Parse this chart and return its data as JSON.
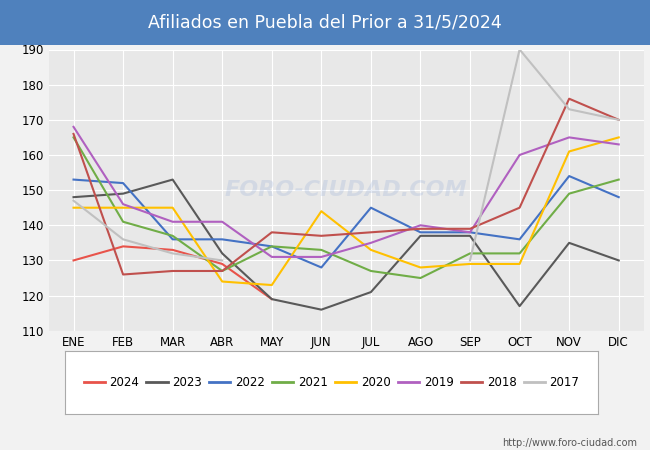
{
  "title": "Afiliados en Puebla del Prior a 31/5/2024",
  "title_bg_color": "#4f81bd",
  "title_text_color": "#ffffff",
  "ylim": [
    110,
    190
  ],
  "yticks": [
    110,
    120,
    130,
    140,
    150,
    160,
    170,
    180,
    190
  ],
  "months": [
    "ENE",
    "FEB",
    "MAR",
    "ABR",
    "MAY",
    "JUN",
    "JUL",
    "AGO",
    "SEP",
    "OCT",
    "NOV",
    "DIC"
  ],
  "url": "http://www.foro-ciudad.com",
  "series": {
    "2024": {
      "color": "#e8534a",
      "data": [
        130,
        134,
        133,
        129,
        119,
        null,
        null,
        null,
        null,
        null,
        null,
        null
      ]
    },
    "2023": {
      "color": "#595959",
      "data": [
        148,
        149,
        153,
        132,
        119,
        116,
        121,
        137,
        137,
        117,
        135,
        130
      ]
    },
    "2022": {
      "color": "#4472c4",
      "data": [
        153,
        152,
        136,
        136,
        134,
        128,
        145,
        138,
        138,
        136,
        154,
        148
      ]
    },
    "2021": {
      "color": "#70ad47",
      "data": [
        165,
        141,
        137,
        127,
        134,
        133,
        127,
        125,
        132,
        132,
        149,
        153
      ]
    },
    "2020": {
      "color": "#ffc000",
      "data": [
        145,
        145,
        145,
        124,
        123,
        144,
        133,
        128,
        129,
        129,
        161,
        165
      ]
    },
    "2019": {
      "color": "#b060c0",
      "data": [
        168,
        146,
        141,
        141,
        131,
        131,
        135,
        140,
        138,
        160,
        165,
        163
      ]
    },
    "2018": {
      "color": "#c0504d",
      "data": [
        166,
        126,
        127,
        127,
        138,
        137,
        138,
        139,
        139,
        145,
        176,
        170
      ]
    },
    "2017": {
      "color": "#c0c0c0",
      "data": [
        147,
        136,
        132,
        130,
        null,
        null,
        null,
        null,
        130,
        190,
        173,
        170
      ]
    }
  },
  "legend_years": [
    "2024",
    "2023",
    "2022",
    "2021",
    "2020",
    "2019",
    "2018",
    "2017"
  ],
  "bg_color": "#f2f2f2",
  "plot_bg_color": "#e8e8e8",
  "grid_color": "#ffffff"
}
